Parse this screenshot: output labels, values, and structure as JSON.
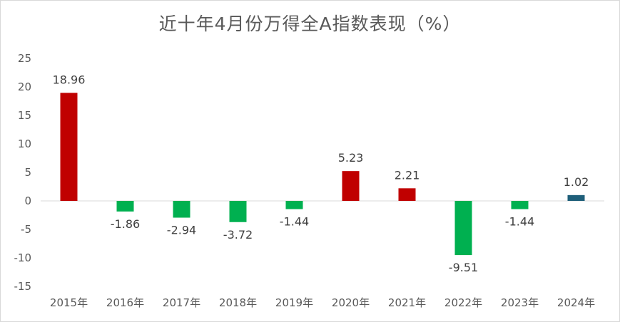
{
  "chart_data": {
    "type": "bar",
    "title": "近十年4月份万得全A指数表现（%）",
    "categories": [
      "2015年",
      "2016年",
      "2017年",
      "2018年",
      "2019年",
      "2020年",
      "2021年",
      "2022年",
      "2023年",
      "2024年"
    ],
    "values": [
      18.96,
      -1.86,
      -2.94,
      -3.72,
      -1.44,
      5.23,
      2.21,
      -9.51,
      -1.44,
      1.02
    ],
    "data_labels": [
      "18.96",
      "-1.86",
      "-2.94",
      "-3.72",
      "-1.44",
      "5.23",
      "2.21",
      "-9.51",
      "-1.44",
      "1.02"
    ],
    "bar_colors": [
      "#c00000",
      "#00b050",
      "#00b050",
      "#00b050",
      "#00b050",
      "#c00000",
      "#c00000",
      "#00b050",
      "#00b050",
      "#1f5f7a"
    ],
    "yticks": [
      "25",
      "20",
      "15",
      "10",
      "5",
      "0",
      "-5",
      "-10",
      "-15"
    ],
    "ylim": [
      -15,
      25
    ],
    "grid": false,
    "legend": "none"
  }
}
